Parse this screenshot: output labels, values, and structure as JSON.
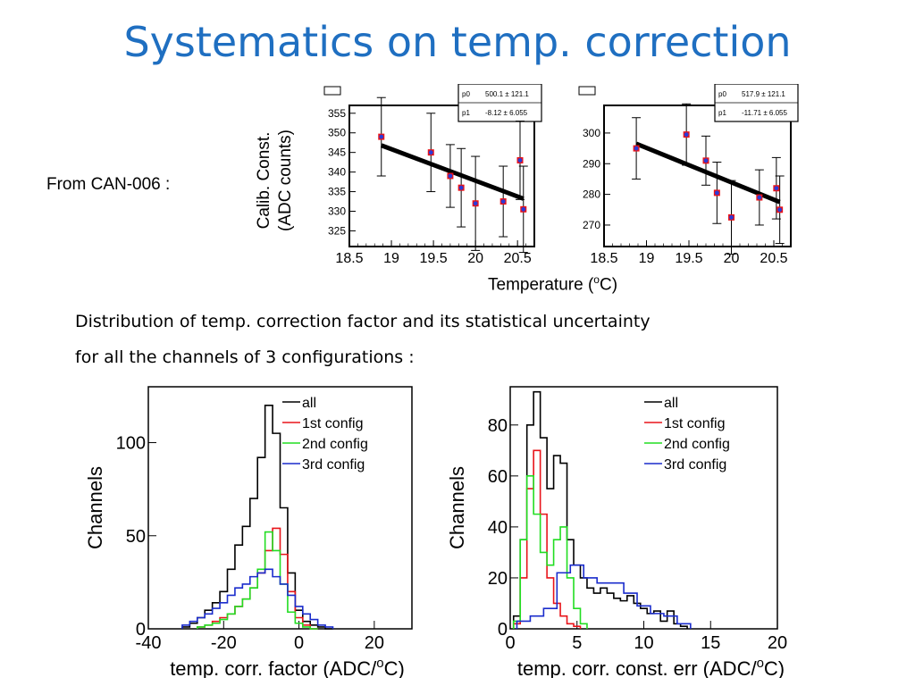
{
  "slide": {
    "title": "Systematics on temp. correction",
    "from_label": "From CAN-006 :",
    "ylabel_line1": "Calib. Const.",
    "ylabel_line2": "(ADC counts)",
    "xlabel_text": "Temperature (",
    "xlabel_sup": "o",
    "xlabel_end": "C)",
    "desc_line1": "Distribution of temp. correction factor and its statistical uncertainty",
    "desc_line2": "for all the channels of 3 configurations :"
  },
  "chart_data": [
    {
      "type": "scatter",
      "fit": {
        "p0": "500.1 ± 121.1",
        "p1": "-8.12 ± 6.055"
      },
      "xlim": [
        18.5,
        20.7
      ],
      "ylim": [
        321,
        357
      ],
      "xticks": [
        18.5,
        19,
        19.5,
        20,
        20.5
      ],
      "xtick_labels": [
        "18.5",
        "19",
        "19.5",
        "20",
        "20.5"
      ],
      "yticks": [
        325,
        330,
        335,
        340,
        345,
        350,
        355
      ],
      "points": [
        {
          "x": 18.88,
          "y": 349,
          "err": 10
        },
        {
          "x": 19.47,
          "y": 345,
          "err": 10
        },
        {
          "x": 19.7,
          "y": 339,
          "err": 8
        },
        {
          "x": 19.83,
          "y": 336,
          "err": 10
        },
        {
          "x": 20.0,
          "y": 332,
          "err": 12
        },
        {
          "x": 20.33,
          "y": 332.5,
          "err": 9
        },
        {
          "x": 20.53,
          "y": 343,
          "err": 10
        },
        {
          "x": 20.57,
          "y": 330.5,
          "err": 11
        }
      ],
      "line": {
        "x": [
          18.88,
          20.57
        ],
        "y": [
          346.8,
          333.2
        ]
      }
    },
    {
      "type": "scatter",
      "fit": {
        "p0": "517.9 ± 121.1",
        "p1": "-11.71 ± 6.055"
      },
      "xlim": [
        18.5,
        20.7
      ],
      "ylim": [
        263,
        309
      ],
      "xticks": [
        18.5,
        19,
        19.5,
        20,
        20.5
      ],
      "xtick_labels": [
        "18.5",
        "19",
        "19.5",
        "20",
        "20.5"
      ],
      "yticks": [
        270,
        280,
        290,
        300
      ],
      "points": [
        {
          "x": 18.88,
          "y": 295,
          "err": 10
        },
        {
          "x": 19.47,
          "y": 299.5,
          "err": 10
        },
        {
          "x": 19.7,
          "y": 291,
          "err": 8
        },
        {
          "x": 19.83,
          "y": 280.5,
          "err": 10
        },
        {
          "x": 20.0,
          "y": 272.5,
          "err": 12
        },
        {
          "x": 20.33,
          "y": 279,
          "err": 9
        },
        {
          "x": 20.53,
          "y": 282,
          "err": 10
        },
        {
          "x": 20.57,
          "y": 275,
          "err": 11
        }
      ],
      "line": {
        "x": [
          18.88,
          20.57
        ],
        "y": [
          296.5,
          277.5
        ]
      }
    },
    {
      "type": "histogram",
      "xlabel": "temp. corr. factor (ADC/°C)",
      "ylabel": "Channels",
      "xlim": [
        -40,
        30
      ],
      "ylim": [
        0,
        130
      ],
      "xticks": [
        -40,
        -20,
        0,
        20
      ],
      "yticks": [
        0,
        50,
        100
      ],
      "legend": [
        "all",
        "1st config",
        "2nd config",
        "3rd config"
      ],
      "colors": [
        "#000000",
        "#e8141a",
        "#22dd22",
        "#1a2ccc"
      ],
      "series": [
        {
          "name": "all",
          "x": [
            -30,
            -28,
            -26,
            -24,
            -22,
            -20,
            -18,
            -16,
            -14,
            -12,
            -10,
            -8,
            -6,
            -4,
            -2,
            0,
            2,
            4,
            6,
            8
          ],
          "values": [
            1,
            3,
            6,
            10,
            14,
            20,
            32,
            45,
            55,
            70,
            92,
            120,
            105,
            65,
            30,
            10,
            4,
            2,
            1,
            0
          ]
        },
        {
          "name": "1st config",
          "x": [
            -26,
            -24,
            -22,
            -20,
            -18,
            -16,
            -14,
            -12,
            -10,
            -8,
            -6,
            -4,
            -2,
            0,
            2,
            4
          ],
          "values": [
            1,
            2,
            4,
            6,
            8,
            12,
            16,
            22,
            30,
            42,
            54,
            40,
            20,
            6,
            2,
            0
          ]
        },
        {
          "name": "2nd config",
          "x": [
            -26,
            -24,
            -22,
            -20,
            -18,
            -16,
            -14,
            -12,
            -10,
            -8,
            -6,
            -4,
            -2,
            0,
            2,
            4
          ],
          "values": [
            1,
            2,
            3,
            5,
            8,
            12,
            16,
            22,
            32,
            52,
            42,
            24,
            9,
            3,
            1,
            0
          ]
        },
        {
          "name": "3rd config",
          "x": [
            -30,
            -28,
            -26,
            -24,
            -22,
            -20,
            -18,
            -16,
            -14,
            -12,
            -10,
            -8,
            -6,
            -4,
            -2,
            0,
            2,
            4,
            6,
            8
          ],
          "values": [
            2,
            4,
            6,
            8,
            11,
            14,
            18,
            22,
            24,
            28,
            30,
            32,
            28,
            24,
            18,
            12,
            8,
            5,
            2,
            1
          ]
        }
      ]
    },
    {
      "type": "histogram",
      "xlabel": "temp. corr. const. err (ADC/°C)",
      "ylabel": "Channels",
      "xlim": [
        0,
        20
      ],
      "ylim": [
        0,
        95
      ],
      "xticks": [
        0,
        5,
        10,
        15,
        20
      ],
      "yticks": [
        0,
        20,
        40,
        60,
        80
      ],
      "legend": [
        "all",
        "1st config",
        "2nd config",
        "3rd config"
      ],
      "colors": [
        "#000000",
        "#e8141a",
        "#22dd22",
        "#1a2ccc"
      ],
      "series": [
        {
          "name": "all",
          "x": [
            0.5,
            1,
            1.5,
            2,
            2.5,
            3,
            3.5,
            4,
            4.5,
            5,
            5.5,
            6,
            6.5,
            7,
            7.5,
            8,
            8.5,
            9,
            9.5,
            10,
            10.5,
            11,
            11.5,
            12,
            12.5,
            13
          ],
          "values": [
            5,
            35,
            80,
            93,
            75,
            55,
            68,
            65,
            35,
            25,
            20,
            16,
            14,
            16,
            14,
            12,
            11,
            13,
            10,
            8,
            6,
            7,
            3,
            7,
            2,
            1
          ]
        },
        {
          "name": "1st config",
          "x": [
            0.5,
            1,
            1.5,
            2,
            2.5,
            3,
            3.5,
            4,
            4.5,
            5
          ],
          "values": [
            2,
            20,
            55,
            70,
            45,
            20,
            10,
            5,
            2,
            1
          ]
        },
        {
          "name": "2nd config",
          "x": [
            0.5,
            1,
            1.5,
            2,
            2.5,
            3,
            3.5,
            4,
            4.5,
            5,
            5.5
          ],
          "values": [
            3,
            35,
            60,
            45,
            30,
            25,
            35,
            40,
            20,
            8,
            2
          ]
        },
        {
          "name": "3rd config",
          "x": [
            1,
            2,
            3,
            4,
            5,
            6,
            7,
            8,
            9,
            10,
            11,
            12,
            13
          ],
          "values": [
            3,
            5,
            8,
            22,
            25,
            20,
            18,
            18,
            14,
            9,
            6,
            5,
            2
          ]
        }
      ]
    }
  ]
}
